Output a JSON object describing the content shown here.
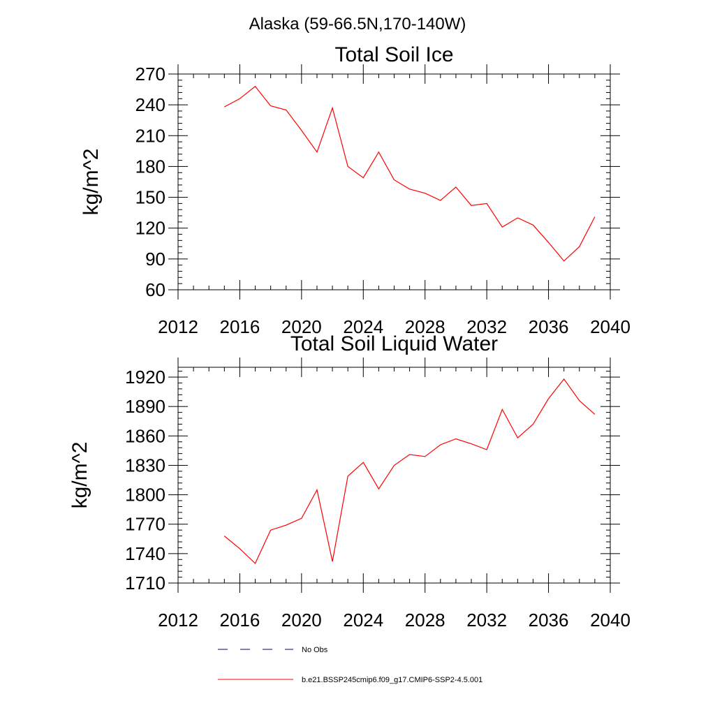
{
  "figure": {
    "title": "Alaska (59-66.5N,170-140W)",
    "legend": [
      {
        "label": "No Obs",
        "color": "#000080",
        "dash": "dashed"
      },
      {
        "label": "b.e21.BSSP245cmip6.f09_g17.CMIP6-SSP2-4.5.001",
        "color": "#ff0000",
        "dash": "solid"
      }
    ]
  },
  "chart_data": [
    {
      "type": "line",
      "title": "Total Soil Ice",
      "xlabel": "",
      "ylabel": "kg/m^2",
      "xlim": [
        2012,
        2040
      ],
      "ylim": [
        60,
        270
      ],
      "xticks": [
        2012,
        2016,
        2020,
        2024,
        2028,
        2032,
        2036,
        2040
      ],
      "yticks": [
        60,
        90,
        120,
        150,
        180,
        210,
        240,
        270
      ],
      "grid": false,
      "series": [
        {
          "name": "b.e21.BSSP245cmip6.f09_g17.CMIP6-SSP2-4.5.001",
          "color": "#ff0000",
          "x": [
            2015,
            2016,
            2017,
            2018,
            2019,
            2020,
            2021,
            2022,
            2023,
            2024,
            2025,
            2026,
            2027,
            2028,
            2029,
            2030,
            2031,
            2032,
            2033,
            2034,
            2035,
            2036,
            2037,
            2038,
            2039
          ],
          "y": [
            238,
            246,
            258,
            239,
            235,
            215,
            194,
            237,
            180,
            169,
            194,
            167,
            158,
            154,
            147,
            160,
            142,
            144,
            121,
            130,
            123,
            106,
            88,
            102,
            131
          ]
        }
      ]
    },
    {
      "type": "line",
      "title": "Total Soil Liquid Water",
      "xlabel": "",
      "ylabel": "kg/m^2",
      "xlim": [
        2012,
        2040
      ],
      "ylim": [
        1710,
        1930
      ],
      "xticks": [
        2012,
        2016,
        2020,
        2024,
        2028,
        2032,
        2036,
        2040
      ],
      "yticks": [
        1710,
        1740,
        1770,
        1800,
        1830,
        1860,
        1890,
        1920
      ],
      "grid": false,
      "series": [
        {
          "name": "b.e21.BSSP245cmip6.f09_g17.CMIP6-SSP2-4.5.001",
          "color": "#ff0000",
          "x": [
            2015,
            2016,
            2017,
            2018,
            2019,
            2020,
            2021,
            2022,
            2023,
            2024,
            2025,
            2026,
            2027,
            2028,
            2029,
            2030,
            2031,
            2032,
            2033,
            2034,
            2035,
            2036,
            2037,
            2038,
            2039
          ],
          "y": [
            1758,
            1745,
            1730,
            1764,
            1769,
            1776,
            1805,
            1732,
            1819,
            1833,
            1806,
            1830,
            1841,
            1839,
            1851,
            1857,
            1852,
            1846,
            1887,
            1858,
            1872,
            1898,
            1918,
            1896,
            1882
          ]
        }
      ]
    }
  ]
}
